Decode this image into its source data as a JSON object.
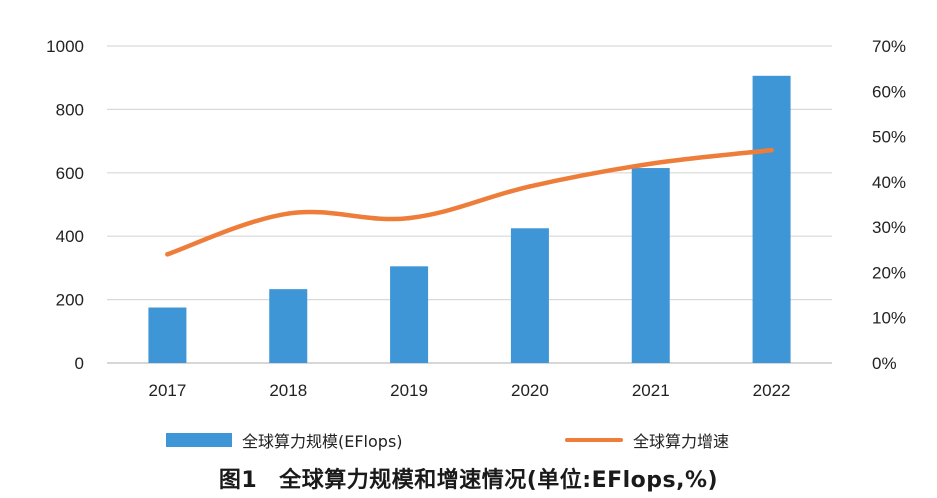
{
  "chart_data": {
    "type": "bar",
    "categories": [
      "2017",
      "2018",
      "2019",
      "2020",
      "2021",
      "2022"
    ],
    "series": [
      {
        "name": "全球算力规模(EFlops)",
        "type": "bar",
        "axis": "left",
        "color": "#3e96d6",
        "values": [
          175,
          233,
          305,
          425,
          615,
          906
        ]
      },
      {
        "name": "全球算力增速",
        "type": "line",
        "axis": "right",
        "color": "#ee7d3a",
        "values": [
          24,
          33,
          32,
          39,
          44,
          47
        ]
      }
    ],
    "y_left": {
      "ylim": [
        0,
        1000
      ],
      "ticks": [
        "0",
        "200",
        "400",
        "600",
        "800",
        "1000"
      ]
    },
    "y_right": {
      "ylim": [
        0,
        70
      ],
      "ticks": [
        "0%",
        "10%",
        "20%",
        "30%",
        "40%",
        "50%",
        "60%",
        "70%"
      ]
    },
    "grid": true,
    "legend": "bottom",
    "caption": {
      "number": "图1",
      "text": "全球算力规模和增速情况(单位:EFlops,%)"
    }
  }
}
